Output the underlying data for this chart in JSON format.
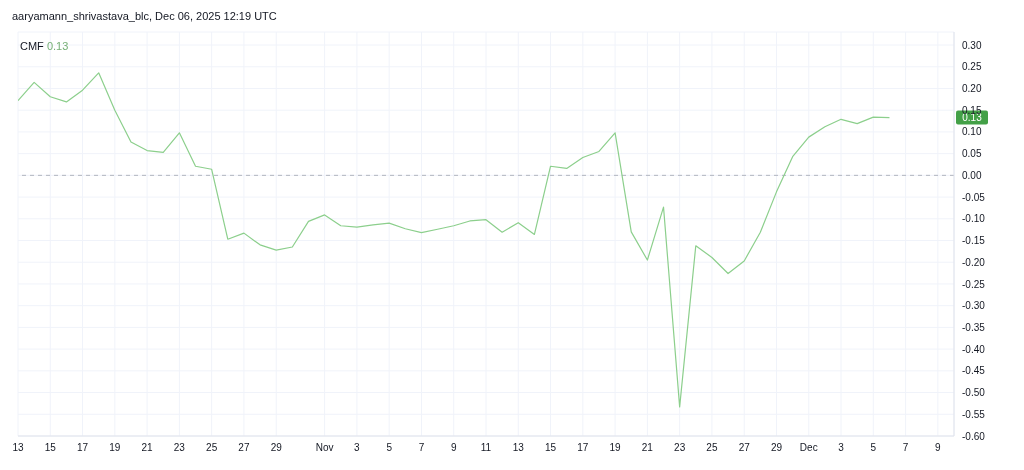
{
  "chart_data": {
    "type": "line",
    "title": "aaryamann_shrivastava_blc, Dec 06, 2025 12:19 UTC",
    "x": [
      "2025-10-13",
      "2025-10-14",
      "2025-10-15",
      "2025-10-16",
      "2025-10-17",
      "2025-10-18",
      "2025-10-19",
      "2025-10-20",
      "2025-10-21",
      "2025-10-22",
      "2025-10-23",
      "2025-10-24",
      "2025-10-25",
      "2025-10-26",
      "2025-10-27",
      "2025-10-28",
      "2025-10-29",
      "2025-10-30",
      "2025-10-31",
      "2025-11-01",
      "2025-11-02",
      "2025-11-03",
      "2025-11-04",
      "2025-11-05",
      "2025-11-06",
      "2025-11-07",
      "2025-11-08",
      "2025-11-09",
      "2025-11-10",
      "2025-11-11",
      "2025-11-12",
      "2025-11-13",
      "2025-11-14",
      "2025-11-15",
      "2025-11-16",
      "2025-11-17",
      "2025-11-18",
      "2025-11-19",
      "2025-11-20",
      "2025-11-21",
      "2025-11-22",
      "2025-11-23",
      "2025-11-24",
      "2025-11-25",
      "2025-11-26",
      "2025-11-27",
      "2025-11-28",
      "2025-11-29",
      "2025-11-30",
      "2025-12-01",
      "2025-12-02",
      "2025-12-03",
      "2025-12-04",
      "2025-12-05",
      "2025-12-06"
    ],
    "series": [
      {
        "name": "CMF",
        "color": "#8ccf8c",
        "values": [
          0.172,
          0.214,
          0.181,
          0.169,
          0.196,
          0.236,
          0.15,
          0.077,
          0.057,
          0.053,
          0.098,
          0.021,
          0.014,
          -0.147,
          -0.133,
          -0.16,
          -0.172,
          -0.165,
          -0.106,
          -0.091,
          -0.116,
          -0.119,
          -0.114,
          -0.11,
          -0.123,
          -0.132,
          -0.124,
          -0.116,
          -0.105,
          -0.102,
          -0.131,
          -0.109,
          -0.136,
          0.021,
          0.016,
          0.041,
          0.055,
          0.098,
          -0.13,
          -0.195,
          -0.073,
          -0.533,
          -0.162,
          -0.189,
          -0.226,
          -0.197,
          -0.131,
          -0.038,
          0.043,
          0.088,
          0.112,
          0.129,
          0.119,
          0.134,
          0.133
        ]
      }
    ],
    "xlim": [
      "2025-10-13",
      "2025-12-10"
    ],
    "xticks": [
      {
        "value": "2025-10-13",
        "label": "13"
      },
      {
        "value": "2025-10-15",
        "label": "15"
      },
      {
        "value": "2025-10-17",
        "label": "17"
      },
      {
        "value": "2025-10-19",
        "label": "19"
      },
      {
        "value": "2025-10-21",
        "label": "21"
      },
      {
        "value": "2025-10-23",
        "label": "23"
      },
      {
        "value": "2025-10-25",
        "label": "25"
      },
      {
        "value": "2025-10-27",
        "label": "27"
      },
      {
        "value": "2025-10-29",
        "label": "29"
      },
      {
        "value": "2025-11-01",
        "label": "Nov"
      },
      {
        "value": "2025-11-03",
        "label": "3"
      },
      {
        "value": "2025-11-05",
        "label": "5"
      },
      {
        "value": "2025-11-07",
        "label": "7"
      },
      {
        "value": "2025-11-09",
        "label": "9"
      },
      {
        "value": "2025-11-11",
        "label": "11"
      },
      {
        "value": "2025-11-13",
        "label": "13"
      },
      {
        "value": "2025-11-15",
        "label": "15"
      },
      {
        "value": "2025-11-17",
        "label": "17"
      },
      {
        "value": "2025-11-19",
        "label": "19"
      },
      {
        "value": "2025-11-21",
        "label": "21"
      },
      {
        "value": "2025-11-23",
        "label": "23"
      },
      {
        "value": "2025-11-25",
        "label": "25"
      },
      {
        "value": "2025-11-27",
        "label": "27"
      },
      {
        "value": "2025-11-29",
        "label": "29"
      },
      {
        "value": "2025-12-01",
        "label": "Dec"
      },
      {
        "value": "2025-12-03",
        "label": "3"
      },
      {
        "value": "2025-12-05",
        "label": "5"
      },
      {
        "value": "2025-12-07",
        "label": "7"
      },
      {
        "value": "2025-12-09",
        "label": "9"
      }
    ],
    "ylim": [
      -0.6,
      0.33
    ],
    "yticks": [
      {
        "value": -0.6,
        "label": "-0.60"
      },
      {
        "value": -0.55,
        "label": "-0.55"
      },
      {
        "value": -0.5,
        "label": "-0.50"
      },
      {
        "value": -0.45,
        "label": "-0.45"
      },
      {
        "value": -0.4,
        "label": "-0.40"
      },
      {
        "value": -0.35,
        "label": "-0.35"
      },
      {
        "value": -0.3,
        "label": "-0.30"
      },
      {
        "value": -0.25,
        "label": "-0.25"
      },
      {
        "value": -0.2,
        "label": "-0.20"
      },
      {
        "value": -0.15,
        "label": "-0.15"
      },
      {
        "value": -0.1,
        "label": "-0.10"
      },
      {
        "value": -0.05,
        "label": "-0.05"
      },
      {
        "value": 0,
        "label": "0.00"
      },
      {
        "value": 0.05,
        "label": "0.05"
      },
      {
        "value": 0.1,
        "label": "0.10"
      },
      {
        "value": 0.15,
        "label": "0.15"
      },
      {
        "value": 0.2,
        "label": "0.20"
      },
      {
        "value": 0.25,
        "label": "0.25"
      },
      {
        "value": 0.3,
        "label": "0.30"
      }
    ],
    "ref_lines": [
      {
        "axis": "y",
        "value": 0,
        "color": "#b2b5be",
        "line_style": "dashed"
      }
    ],
    "annotations": [
      "0.13",
      "0.13"
    ],
    "grid": true,
    "legend": "top left",
    "marker": "none",
    "line_style": "solid"
  }
}
